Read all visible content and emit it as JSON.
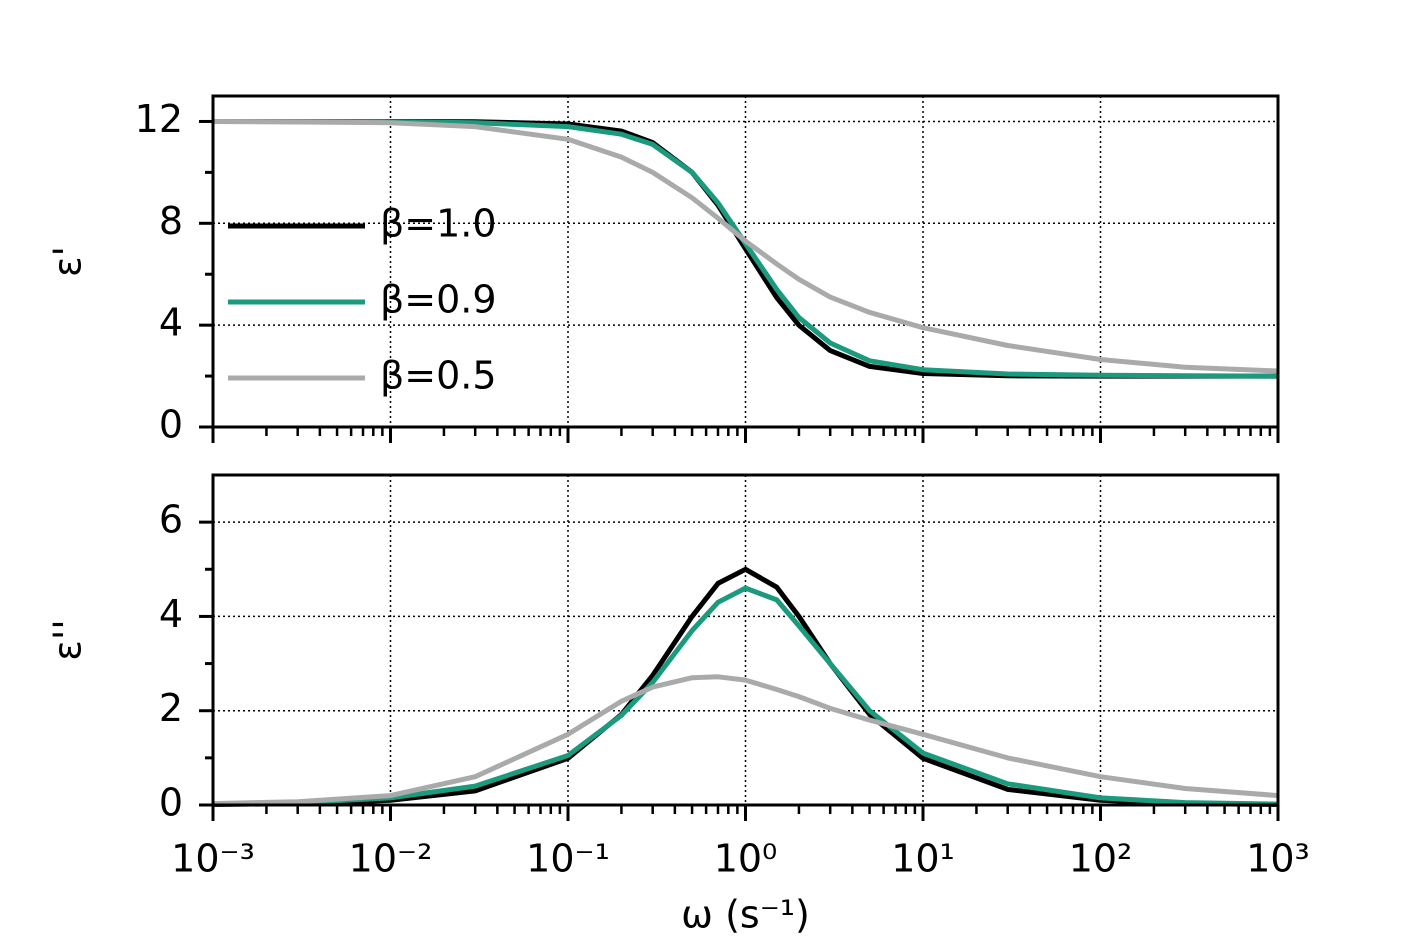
{
  "chart_data": [
    {
      "type": "line",
      "ylabel": "ε'",
      "log_x": true,
      "grid": true,
      "legend": "upper left",
      "xlim": [
        0.001,
        1000
      ],
      "ylim": [
        0,
        13
      ],
      "xticks": [
        0.001,
        0.01,
        0.1,
        1,
        10,
        100,
        1000
      ],
      "yticks": [
        0,
        4,
        8,
        12
      ],
      "x": [
        0.001,
        0.003,
        0.01,
        0.03,
        0.1,
        0.2,
        0.3,
        0.5,
        0.7,
        1,
        1.5,
        2,
        3,
        5,
        10,
        30,
        100,
        300,
        1000
      ],
      "series": [
        {
          "name": "β=1.0",
          "color": "#000000",
          "values": [
            12,
            12,
            12,
            11.99,
            11.9,
            11.62,
            11.17,
            10,
            8.71,
            7,
            5.08,
            4,
            3,
            2.38,
            2.1,
            2.01,
            2,
            2,
            2
          ]
        },
        {
          "name": "β=0.9",
          "color": "#1b9a7d",
          "values": [
            12,
            12,
            11.99,
            11.95,
            11.8,
            11.5,
            11.1,
            10,
            8.8,
            7.2,
            5.4,
            4.3,
            3.3,
            2.6,
            2.25,
            2.08,
            2.03,
            2.01,
            2
          ]
        },
        {
          "name": "β=0.5",
          "color": "#a9abab",
          "values": [
            12,
            11.98,
            11.95,
            11.8,
            11.3,
            10.6,
            10,
            9,
            8.2,
            7.3,
            6.4,
            5.8,
            5.1,
            4.5,
            3.9,
            3.2,
            2.65,
            2.35,
            2.2
          ]
        }
      ]
    },
    {
      "type": "line",
      "ylabel": "ε''",
      "xlabel": "ω (s⁻¹)",
      "log_x": true,
      "grid": true,
      "xlim": [
        0.001,
        1000
      ],
      "ylim": [
        0,
        7
      ],
      "xticks": [
        {
          "value": 0.001,
          "label": "10⁻³"
        },
        {
          "value": 0.01,
          "label": "10⁻²"
        },
        {
          "value": 0.1,
          "label": "10⁻¹"
        },
        {
          "value": 1,
          "label": "10⁰"
        },
        {
          "value": 10,
          "label": "10¹"
        },
        {
          "value": 100,
          "label": "10²"
        },
        {
          "value": 1000,
          "label": "10³"
        }
      ],
      "yticks": [
        0,
        2,
        4,
        6
      ],
      "x": [
        0.001,
        0.003,
        0.01,
        0.03,
        0.1,
        0.2,
        0.3,
        0.5,
        0.7,
        1,
        1.5,
        2,
        3,
        5,
        10,
        30,
        100,
        300,
        1000
      ],
      "series": [
        {
          "color": "#000000",
          "values": [
            0.01,
            0.03,
            0.1,
            0.3,
            0.99,
            1.92,
            2.75,
            4,
            4.7,
            5,
            4.62,
            4,
            3,
            1.92,
            0.99,
            0.33,
            0.1,
            0.03,
            0.01
          ]
        },
        {
          "color": "#1b9a7d",
          "values": [
            0.02,
            0.05,
            0.15,
            0.4,
            1.05,
            1.9,
            2.6,
            3.7,
            4.3,
            4.6,
            4.35,
            3.8,
            3,
            2,
            1.1,
            0.45,
            0.15,
            0.05,
            0.02
          ]
        },
        {
          "color": "#a9abab",
          "values": [
            0.03,
            0.07,
            0.2,
            0.6,
            1.5,
            2.2,
            2.5,
            2.7,
            2.72,
            2.65,
            2.45,
            2.3,
            2.05,
            1.8,
            1.5,
            1,
            0.6,
            0.35,
            0.2
          ]
        }
      ]
    }
  ]
}
